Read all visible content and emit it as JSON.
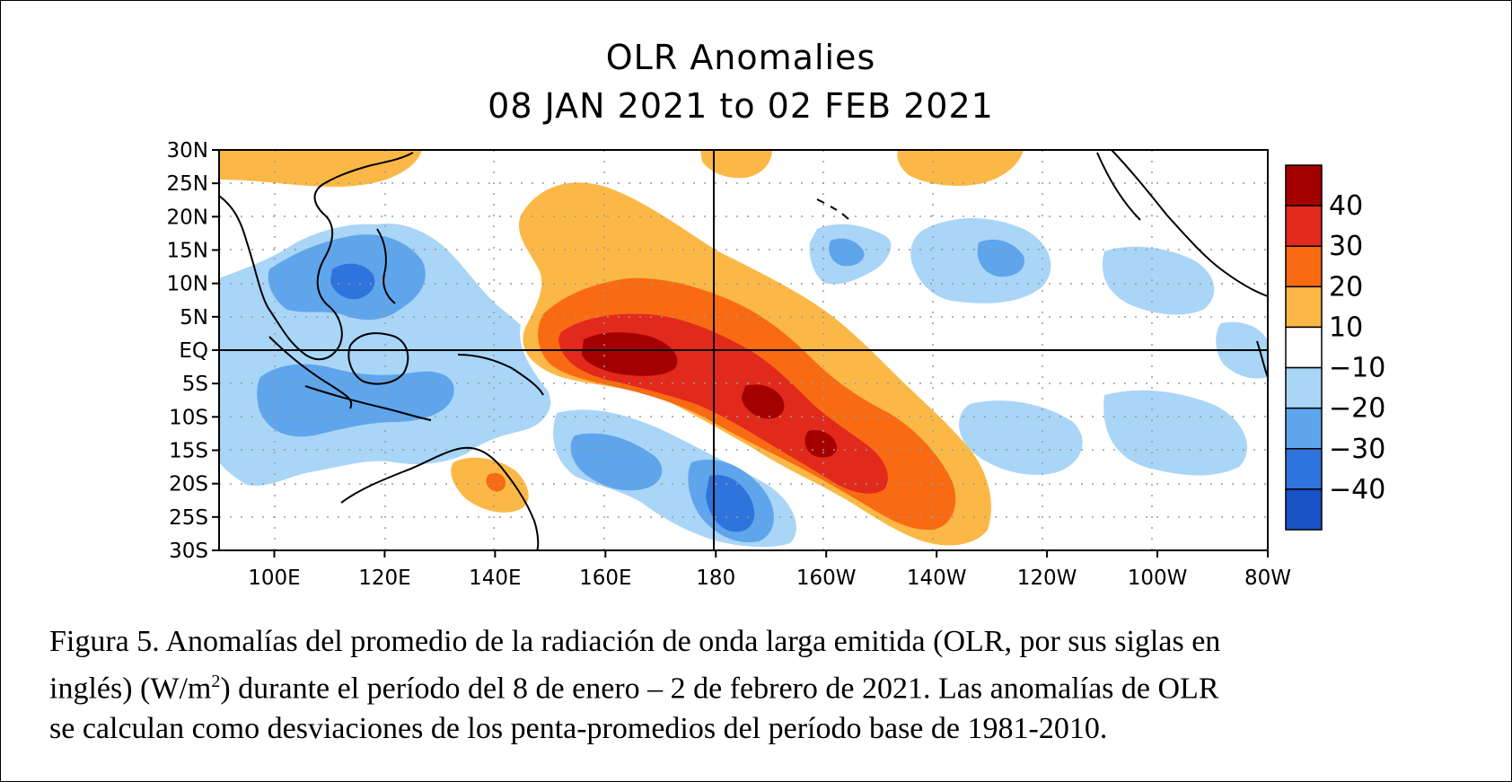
{
  "chart_data": {
    "type": "heatmap",
    "title": "OLR Anomalies",
    "subtitle": "08 JAN 2021 to 02 FEB 2021",
    "y_ticks": [
      "30N",
      "25N",
      "20N",
      "15N",
      "10N",
      "5N",
      "EQ",
      "5S",
      "10S",
      "15S",
      "20S",
      "25S",
      "30S"
    ],
    "x_ticks": [
      "100E",
      "120E",
      "140E",
      "160E",
      "180",
      "160W",
      "140W",
      "120W",
      "100W",
      "80W"
    ],
    "x_range": [
      "90E",
      "80W"
    ],
    "y_range": [
      "30N",
      "30S"
    ],
    "grid": true,
    "colorbar": {
      "labels": [
        "40",
        "30",
        "20",
        "10",
        "−10",
        "−20",
        "−30",
        "−40"
      ],
      "colors": [
        "#a50000",
        "#e12a1c",
        "#f96b12",
        "#fcb846",
        "#ffffff",
        "#a9d5f7",
        "#5fa5ec",
        "#2f74dd",
        "#1951c6"
      ]
    }
  },
  "caption": {
    "line1": "Figura 5. Anomalías del promedio de la radiación de onda larga emitida (OLR, por sus siglas en",
    "line2a": "inglés) (W/m",
    "line2sup": "2",
    "line2b": ") durante el período del 8 de enero – 2 de febrero de 2021.  Las anomalías de OLR",
    "line3": "se calculan como desviaciones de los penta-promedios del período base de 1981-2010."
  }
}
